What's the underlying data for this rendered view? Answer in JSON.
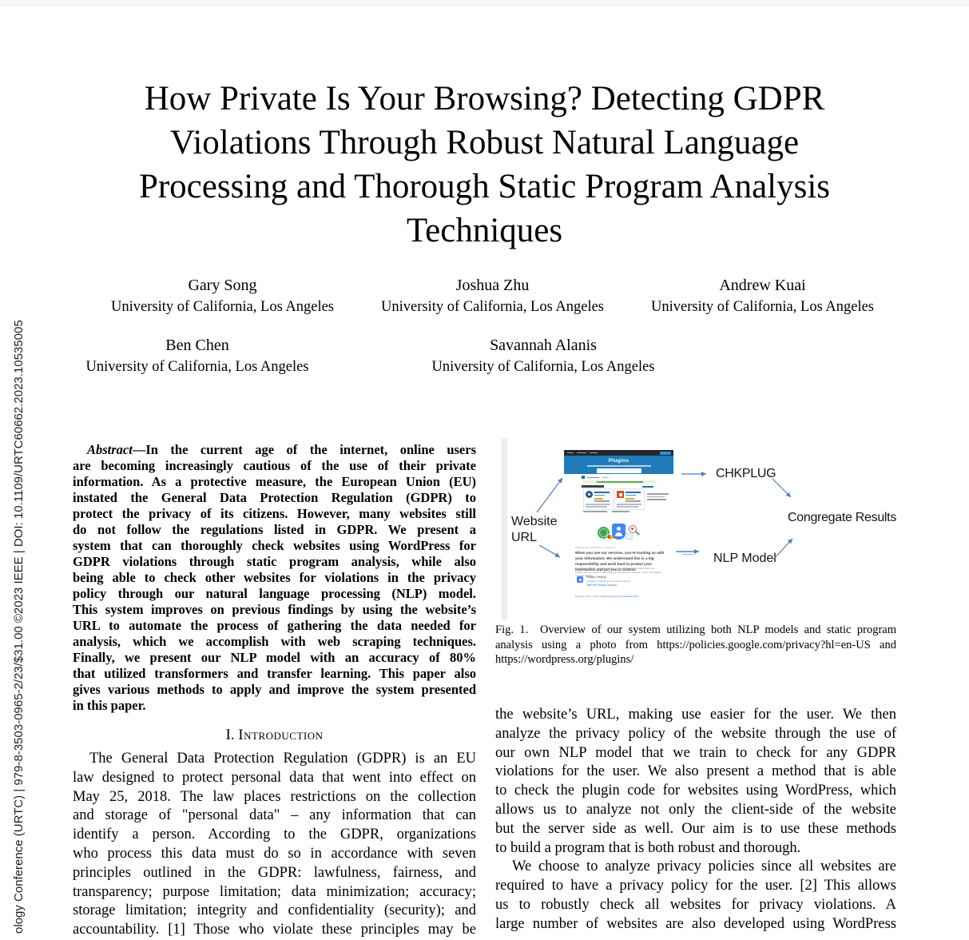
{
  "page": {
    "background": "#ffffff"
  },
  "sidebar": {
    "copyright_text": "ology Conference (URTC) | 979-8-3503-0965-2/23/$31.00 ©2023 IEEE | DOI: 10.1109/URTC60662.2023.10535005"
  },
  "title": {
    "lines": [
      "How Private Is Your Browsing? Detecting GDPR",
      "Violations Through Robust Natural Language",
      "Processing and Thorough Static Program Analysis",
      "Techniques"
    ]
  },
  "authors": {
    "row1": [
      {
        "name": "Gary Song",
        "affiliation": "University of California, Los Angeles"
      },
      {
        "name": "Joshua Zhu",
        "affiliation": "University of California, Los Angeles"
      },
      {
        "name": "Andrew Kuai",
        "affiliation": "University of California, Los Angeles"
      }
    ],
    "row2": [
      {
        "name": "Ben Chen",
        "affiliation": "University of California, Los Angeles"
      },
      {
        "name": "Savannah Alanis",
        "affiliation": "University of California, Los Angeles"
      }
    ]
  },
  "abstract": {
    "label": "Abstract",
    "first_line_rest": "—In the current age of the internet, online users",
    "lines": [
      "are becoming increasingly cautious of the use of their private",
      "information. As a protective measure, the European Union (EU)",
      "instated the General Data Protection Regulation (GDPR) to",
      "protect the privacy of its citizens. However, many websites still",
      "do not follow the regulations listed in GDPR. We present a",
      "system that can thoroughly check websites using WordPress for",
      "GDPR violations through static program analysis, while also",
      "being able to check other websites for violations in the privacy",
      "policy through our natural language processing (NLP) model.",
      "This system improves on previous findings by using the website’s",
      "URL to automate the process of gathering the data needed for",
      "analysis, which we accomplish with web scraping techniques.",
      "Finally, we present our NLP model with an accuracy of 80%",
      "that utilized transformers and transfer learning. This paper also",
      "gives various methods to apply and improve the system presented",
      "in this paper."
    ]
  },
  "introduction": {
    "heading_number": "I.",
    "heading_text": "Introduction",
    "lines": [
      "The General Data Protection Regulation (GDPR) is an EU",
      "law designed to protect personal data that went into effect on",
      "May 25, 2018. The law places restrictions on the collection",
      "and storage of \"personal data\" – any information that can",
      "identify a person. According to the GDPR, organizations",
      "who process this data must do so in accordance with seven",
      "principles outlined in the GDPR: lawfulness, fairness, and",
      "transparency; purpose limitation; data minimization; accuracy;",
      "storage limitation; integrity and confidentiality (security); and",
      "accountability. [1] Those who violate these principles may be"
    ]
  },
  "right_column": {
    "para1_lines": [
      "the website’s URL, making use easier for the user. We then",
      "analyze the privacy policy of the website through the use of",
      "our own NLP model that we train to check for any GDPR",
      "violations for the user. We also present a method that is able",
      "to check the plugin code for websites using WordPress, which",
      "allows us to analyze not only the client-side of the website",
      "but the server side as well. Our aim is to use these methods",
      "to build a program that is both robust and thorough."
    ],
    "para2_lines": [
      "We choose to analyze privacy policies since all websites are",
      "required to have a privacy policy for the user. [2] This allows",
      "us to robustly check all websites for privacy violations. A",
      "large number of websites are also developed using WordPress"
    ]
  },
  "figure": {
    "caption_lines": [
      "Fig. 1.  Overview of our system utilizing both NLP models and static program",
      "analysis using a photo from https://policies.google.com/privacy?hl=en-US and",
      "https://wordpress.org/plugins/"
    ],
    "labels": {
      "website_line1": "Website",
      "website_line2": "URL",
      "chkplug": "CHKPLUG",
      "congregate": "Congregate Results",
      "nlp": "NLP Model"
    },
    "arrow_color": "#4a7ebd",
    "wordpress_screenshot": {
      "banner_title": "Plugins",
      "banner_color": "#1f7cb8",
      "admin_bar_color": "#23282d",
      "accent_color": "#2271b1"
    },
    "google_screenshot": {
      "caps_label": "GOOGLE PRIVACY POLICY",
      "headline": "When you use our services, you’re trusting us with your information. We understand this is a big responsibility and work hard to protect your information and put you in control.",
      "subtext": "This Privacy Policy is meant to help you understand what information we collect, why we collect it, and how you can update, manage, export, and delete your information.",
      "checkup_title": "Privacy Checkup",
      "checkup_subtitle": "Looking to change your privacy settings?",
      "checkup_link": "Take the Privacy Checkup",
      "effective_text": "Effective July 1, 2020 | ",
      "links_text": "Archived versions | Download PDF",
      "shield_color": "#4285f4",
      "globe_color": "#3aa757",
      "accent_red": "#ea4335",
      "accent_yellow": "#fbbc04",
      "link_color": "#1a73e8"
    },
    "icons": {
      "globe-icon": "green globe with stand",
      "shield-person-icon": "blue shield with white person",
      "magnifier-icon": "gray magnifying glass",
      "privacy-checkup-icon": "blue rounded square"
    }
  }
}
